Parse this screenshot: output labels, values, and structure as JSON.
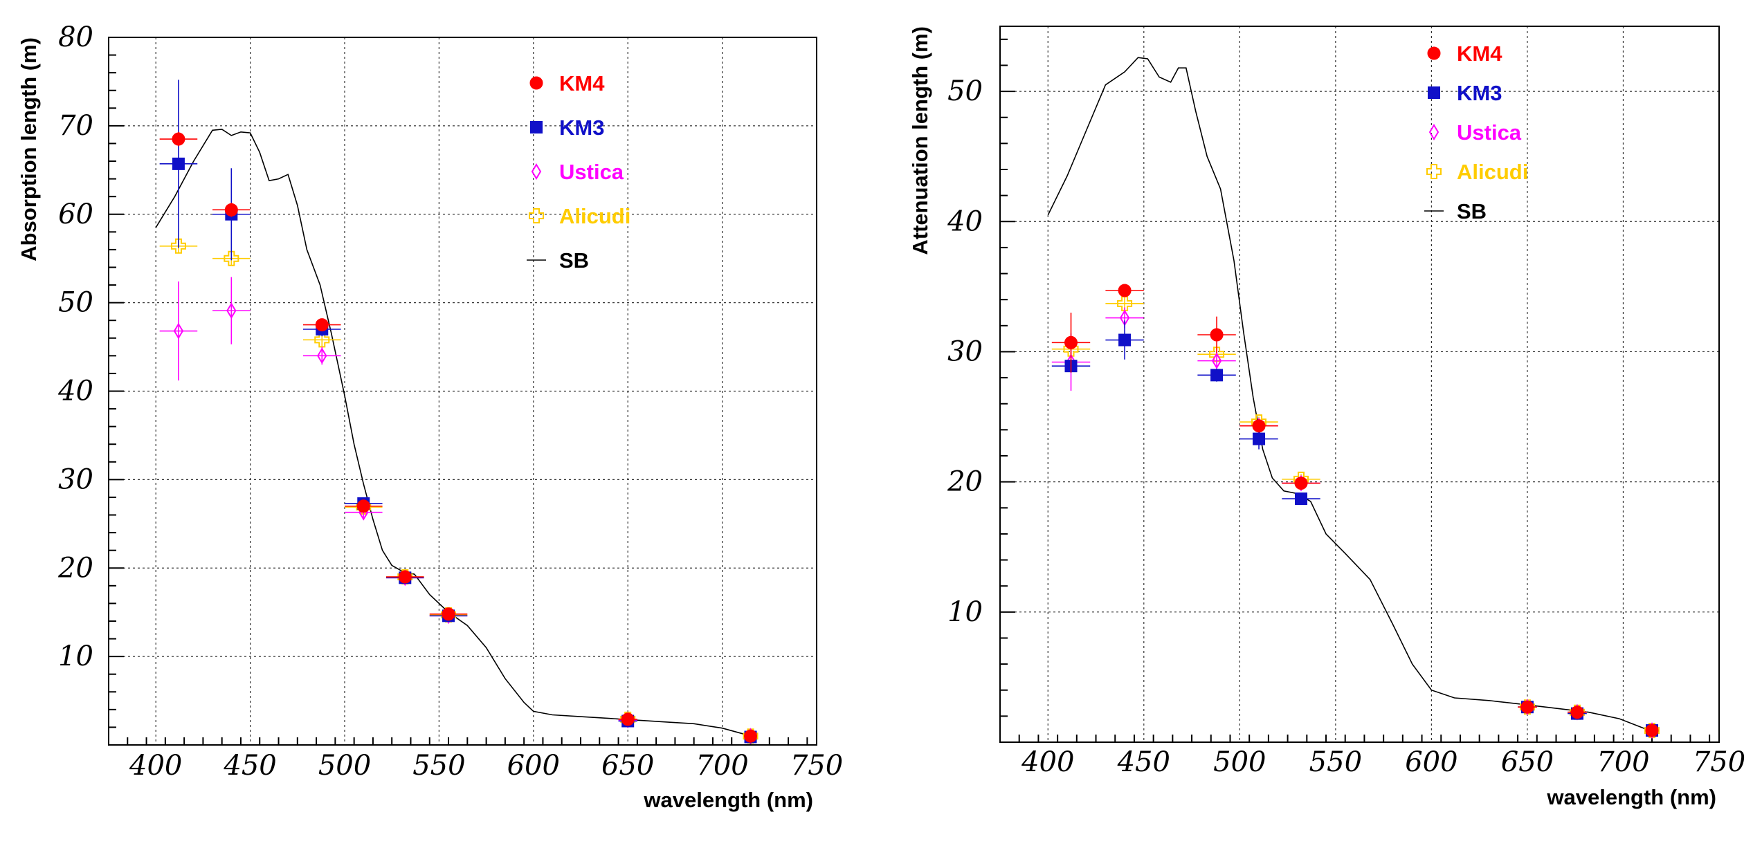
{
  "chart_data": [
    {
      "type": "scatter",
      "title": "",
      "xlabel": "wavelength (nm)",
      "ylabel": "Absorption length (m)",
      "xlim": [
        375,
        750
      ],
      "ylim": [
        0,
        80
      ],
      "grid": true,
      "legend_position": "top-right",
      "x_ticks": [
        "400",
        "450",
        "500",
        "550",
        "600",
        "650",
        "700",
        "750"
      ],
      "y_ticks": [
        "10",
        "20",
        "30",
        "40",
        "50",
        "60",
        "70",
        "80"
      ],
      "legend": [
        {
          "name": "KM4",
          "color": "#ff0000",
          "marker": "circle"
        },
        {
          "name": "KM3",
          "color": "#1010c8",
          "marker": "square"
        },
        {
          "name": "Ustica",
          "color": "#ff00ff",
          "marker": "open-diamond"
        },
        {
          "name": "Alicudi",
          "color": "#ffcc00",
          "marker": "open-cross"
        },
        {
          "name": "SB",
          "color": "#000000",
          "marker": "line"
        }
      ],
      "series": [
        {
          "name": "KM4",
          "color": "#ff0000",
          "marker": "circle",
          "points": [
            {
              "x": 412,
              "y": 68.5,
              "yerr": 0.8,
              "xerr": 10
            },
            {
              "x": 440,
              "y": 60.5,
              "yerr": 0.8,
              "xerr": 10
            },
            {
              "x": 488,
              "y": 47.5,
              "yerr": 0.6,
              "xerr": 10
            },
            {
              "x": 510,
              "y": 27.0,
              "yerr": 0.4,
              "xerr": 10
            },
            {
              "x": 532,
              "y": 19.0,
              "yerr": 0.3,
              "xerr": 10
            },
            {
              "x": 555,
              "y": 14.8,
              "yerr": 0.3,
              "xerr": 10
            },
            {
              "x": 650,
              "y": 2.9,
              "yerr": 0.2,
              "xerr": 5
            },
            {
              "x": 715,
              "y": 1.0,
              "yerr": 0.1,
              "xerr": 3
            }
          ]
        },
        {
          "name": "KM3",
          "color": "#1010c8",
          "marker": "square",
          "points": [
            {
              "x": 412,
              "y": 65.7,
              "yerr": 9.5,
              "xerr": 10
            },
            {
              "x": 440,
              "y": 60.0,
              "yerr": 5.2,
              "xerr": 10
            },
            {
              "x": 488,
              "y": 47.0,
              "yerr": 0.8,
              "xerr": 10
            },
            {
              "x": 510,
              "y": 27.3,
              "yerr": 0.4,
              "xerr": 10
            },
            {
              "x": 532,
              "y": 18.9,
              "yerr": 0.3,
              "xerr": 10
            },
            {
              "x": 555,
              "y": 14.6,
              "yerr": 0.3,
              "xerr": 10
            },
            {
              "x": 650,
              "y": 2.7,
              "yerr": 0.2,
              "xerr": 5
            },
            {
              "x": 715,
              "y": 0.9,
              "yerr": 0.1,
              "xerr": 3
            }
          ]
        },
        {
          "name": "Ustica",
          "color": "#ff00ff",
          "marker": "open-diamond",
          "points": [
            {
              "x": 412,
              "y": 46.8,
              "yerr": 5.6,
              "xerr": 10
            },
            {
              "x": 440,
              "y": 49.1,
              "yerr": 3.8,
              "xerr": 10
            },
            {
              "x": 488,
              "y": 44.0,
              "yerr": 1.0,
              "xerr": 10
            },
            {
              "x": 510,
              "y": 26.3,
              "yerr": 0.6,
              "xerr": 10
            },
            {
              "x": 532,
              "y": 18.9,
              "yerr": 0.3,
              "xerr": 10
            },
            {
              "x": 555,
              "y": 14.6,
              "yerr": 0.3,
              "xerr": 10
            },
            {
              "x": 650,
              "y": 2.8,
              "yerr": 0.2,
              "xerr": 5
            },
            {
              "x": 715,
              "y": 1.0,
              "yerr": 0.1,
              "xerr": 3
            }
          ]
        },
        {
          "name": "Alicudi",
          "color": "#ffcc00",
          "marker": "open-cross",
          "points": [
            {
              "x": 412,
              "y": 56.4,
              "yerr": 0.8,
              "xerr": 10
            },
            {
              "x": 440,
              "y": 55.0,
              "yerr": 0.8,
              "xerr": 10
            },
            {
              "x": 488,
              "y": 45.8,
              "yerr": 0.8,
              "xerr": 10
            },
            {
              "x": 510,
              "y": 26.9,
              "yerr": 0.4,
              "xerr": 10
            },
            {
              "x": 532,
              "y": 19.0,
              "yerr": 0.3,
              "xerr": 10
            },
            {
              "x": 555,
              "y": 14.7,
              "yerr": 0.3,
              "xerr": 10
            },
            {
              "x": 650,
              "y": 2.9,
              "yerr": 0.2,
              "xerr": 5
            },
            {
              "x": 715,
              "y": 1.0,
              "yerr": 0.1,
              "xerr": 3
            }
          ]
        },
        {
          "name": "SB",
          "color": "#000000",
          "marker": "line",
          "curve": [
            [
              400,
              58.5
            ],
            [
              410,
              62
            ],
            [
              420,
              66
            ],
            [
              430,
              69.5
            ],
            [
              435,
              69.6
            ],
            [
              440,
              68.9
            ],
            [
              445,
              69.3
            ],
            [
              450,
              69.2
            ],
            [
              455,
              67
            ],
            [
              460,
              63.8
            ],
            [
              465,
              64
            ],
            [
              470,
              64.5
            ],
            [
              475,
              61
            ],
            [
              480,
              56
            ],
            [
              487,
              52
            ],
            [
              493,
              46.5
            ],
            [
              500,
              39.5
            ],
            [
              505,
              34
            ],
            [
              510,
              29.5
            ],
            [
              515,
              25.5
            ],
            [
              520,
              22
            ],
            [
              525,
              20.3
            ],
            [
              530,
              19.7
            ],
            [
              537,
              19.3
            ],
            [
              545,
              17
            ],
            [
              555,
              15
            ],
            [
              565,
              13.5
            ],
            [
              575,
              11
            ],
            [
              585,
              7.5
            ],
            [
              595,
              4.8
            ],
            [
              600,
              3.8
            ],
            [
              610,
              3.4
            ],
            [
              625,
              3.2
            ],
            [
              640,
              3.0
            ],
            [
              655,
              2.8
            ],
            [
              670,
              2.6
            ],
            [
              685,
              2.4
            ],
            [
              700,
              1.9
            ],
            [
              712,
              1.2
            ]
          ]
        }
      ]
    },
    {
      "type": "scatter",
      "title": "",
      "xlabel": "wavelength (nm)",
      "ylabel": "Attenuation length (m)",
      "xlim": [
        375,
        750
      ],
      "ylim": [
        0,
        55
      ],
      "grid": true,
      "legend_position": "top-right",
      "x_ticks": [
        "400",
        "450",
        "500",
        "550",
        "600",
        "650",
        "700",
        "750"
      ],
      "y_ticks": [
        "10",
        "20",
        "30",
        "40",
        "50"
      ],
      "legend": [
        {
          "name": "KM4",
          "color": "#ff0000",
          "marker": "circle"
        },
        {
          "name": "KM3",
          "color": "#1010c8",
          "marker": "square"
        },
        {
          "name": "Ustica",
          "color": "#ff00ff",
          "marker": "open-diamond"
        },
        {
          "name": "Alicudi",
          "color": "#ffcc00",
          "marker": "open-cross"
        },
        {
          "name": "SB",
          "color": "#000000",
          "marker": "line"
        }
      ],
      "series": [
        {
          "name": "KM4",
          "color": "#ff0000",
          "marker": "circle",
          "points": [
            {
              "x": 412,
              "y": 30.7,
              "yerr": 2.3,
              "xerr": 10
            },
            {
              "x": 440,
              "y": 34.7,
              "yerr": 0.4,
              "xerr": 10
            },
            {
              "x": 488,
              "y": 31.3,
              "yerr": 1.4,
              "xerr": 10
            },
            {
              "x": 510,
              "y": 24.3,
              "yerr": 0.4,
              "xerr": 10
            },
            {
              "x": 532,
              "y": 19.9,
              "yerr": 0.4,
              "xerr": 10
            },
            {
              "x": 650,
              "y": 2.7,
              "yerr": 0.2,
              "xerr": 5
            },
            {
              "x": 676,
              "y": 2.3,
              "yerr": 0.2,
              "xerr": 5
            },
            {
              "x": 715,
              "y": 0.9,
              "yerr": 0.1,
              "xerr": 3
            }
          ]
        },
        {
          "name": "KM3",
          "color": "#1010c8",
          "marker": "square",
          "points": [
            {
              "x": 412,
              "y": 28.9,
              "yerr": 0.5,
              "xerr": 10
            },
            {
              "x": 440,
              "y": 30.9,
              "yerr": 1.5,
              "xerr": 10
            },
            {
              "x": 488,
              "y": 28.2,
              "yerr": 0.5,
              "xerr": 10
            },
            {
              "x": 510,
              "y": 23.3,
              "yerr": 0.8,
              "xerr": 10
            },
            {
              "x": 532,
              "y": 18.7,
              "yerr": 0.3,
              "xerr": 10
            },
            {
              "x": 650,
              "y": 2.7,
              "yerr": 0.2,
              "xerr": 5
            },
            {
              "x": 676,
              "y": 2.2,
              "yerr": 0.2,
              "xerr": 5
            },
            {
              "x": 715,
              "y": 0.9,
              "yerr": 0.1,
              "xerr": 3
            }
          ]
        },
        {
          "name": "Ustica",
          "color": "#ff00ff",
          "marker": "open-diamond",
          "points": [
            {
              "x": 412,
              "y": 29.2,
              "yerr": 2.2,
              "xerr": 10
            },
            {
              "x": 440,
              "y": 32.6,
              "yerr": 0.8,
              "xerr": 10
            },
            {
              "x": 488,
              "y": 29.3,
              "yerr": 0.8,
              "xerr": 10
            },
            {
              "x": 510,
              "y": 24.3,
              "yerr": 0.4,
              "xerr": 10
            },
            {
              "x": 532,
              "y": 19.9,
              "yerr": 0.4,
              "xerr": 10
            },
            {
              "x": 650,
              "y": 2.7,
              "yerr": 0.2,
              "xerr": 5
            },
            {
              "x": 676,
              "y": 2.3,
              "yerr": 0.2,
              "xerr": 5
            },
            {
              "x": 715,
              "y": 0.9,
              "yerr": 0.1,
              "xerr": 3
            }
          ]
        },
        {
          "name": "Alicudi",
          "color": "#ffcc00",
          "marker": "open-cross",
          "points": [
            {
              "x": 412,
              "y": 30.2,
              "yerr": 0.6,
              "xerr": 10
            },
            {
              "x": 440,
              "y": 33.7,
              "yerr": 0.5,
              "xerr": 10
            },
            {
              "x": 488,
              "y": 29.8,
              "yerr": 0.6,
              "xerr": 10
            },
            {
              "x": 510,
              "y": 24.6,
              "yerr": 0.4,
              "xerr": 10
            },
            {
              "x": 532,
              "y": 20.2,
              "yerr": 0.4,
              "xerr": 10
            },
            {
              "x": 650,
              "y": 2.7,
              "yerr": 0.2,
              "xerr": 5
            },
            {
              "x": 676,
              "y": 2.3,
              "yerr": 0.2,
              "xerr": 5
            },
            {
              "x": 715,
              "y": 0.9,
              "yerr": 0.1,
              "xerr": 3
            }
          ]
        },
        {
          "name": "SB",
          "color": "#000000",
          "marker": "line",
          "curve": [
            [
              400,
              40.5
            ],
            [
              410,
              43.5
            ],
            [
              420,
              47
            ],
            [
              430,
              50.5
            ],
            [
              440,
              51.5
            ],
            [
              447,
              52.6
            ],
            [
              452,
              52.5
            ],
            [
              458,
              51.1
            ],
            [
              464,
              50.7
            ],
            [
              468,
              51.8
            ],
            [
              472,
              51.8
            ],
            [
              477,
              48.5
            ],
            [
              483,
              45
            ],
            [
              490,
              42.5
            ],
            [
              497,
              37
            ],
            [
              502,
              31.5
            ],
            [
              507,
              26.5
            ],
            [
              512,
              22.5
            ],
            [
              517,
              20.3
            ],
            [
              523,
              19.3
            ],
            [
              530,
              19.1
            ],
            [
              537,
              18.5
            ],
            [
              545,
              16
            ],
            [
              555,
              14.5
            ],
            [
              568,
              12.5
            ],
            [
              580,
              9
            ],
            [
              590,
              6
            ],
            [
              600,
              4
            ],
            [
              612,
              3.4
            ],
            [
              630,
              3.2
            ],
            [
              648,
              2.9
            ],
            [
              665,
              2.6
            ],
            [
              682,
              2.3
            ],
            [
              698,
              1.8
            ],
            [
              712,
              1.0
            ]
          ]
        }
      ]
    }
  ]
}
